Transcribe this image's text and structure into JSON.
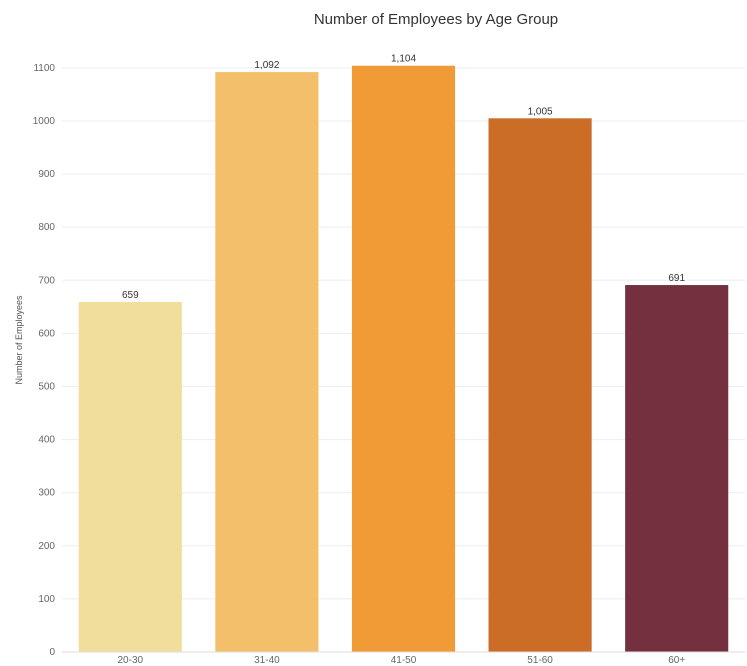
{
  "chart_data": {
    "type": "bar",
    "title": "Number of Employees by Age Group",
    "xlabel": "",
    "ylabel": "Number of Employees",
    "categories": [
      "20-30",
      "31-40",
      "41-50",
      "51-60",
      "60+"
    ],
    "values": [
      659,
      1092,
      1104,
      1005,
      691
    ],
    "data_labels": [
      "659",
      "1,092",
      "1,104",
      "1,005",
      "691"
    ],
    "colors": [
      "#F2DE9C",
      "#F3BF6A",
      "#F19B37",
      "#CB6C27",
      "#74303F"
    ],
    "ylim": [
      0,
      1160
    ],
    "yticks": [
      0,
      100,
      200,
      300,
      400,
      500,
      600,
      700,
      800,
      900,
      1000,
      1100
    ],
    "grid": true,
    "legend": "none"
  }
}
